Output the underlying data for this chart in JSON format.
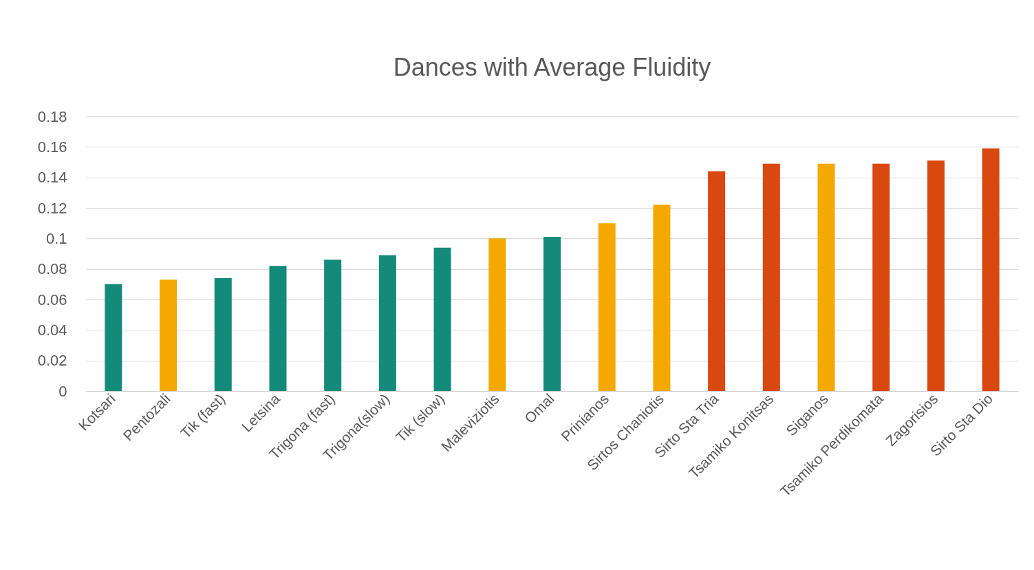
{
  "chart_data": {
    "type": "bar",
    "title": "Dances with Average Fluidity",
    "categories": [
      "Kotsari",
      "Pentozali",
      "Tik (fast)",
      "Letsina",
      "Trigona (fast)",
      "Trigona(slow)",
      "Tik (slow)",
      "Maleviziotis",
      "Omal",
      "Prinianos",
      "Sirtos Chaniotis",
      "Sirto Sta Tria",
      "Tsamiko Konitsas",
      "Siganos",
      "Tsamiko Perdikomata",
      "Zagorisios",
      "Sirto Sta Dio"
    ],
    "values": [
      0.07,
      0.073,
      0.074,
      0.082,
      0.086,
      0.089,
      0.094,
      0.1,
      0.101,
      0.11,
      0.122,
      0.144,
      0.149,
      0.149,
      0.149,
      0.151,
      0.159
    ],
    "colors": [
      "#138a7a",
      "#f5a800",
      "#138a7a",
      "#138a7a",
      "#138a7a",
      "#138a7a",
      "#138a7a",
      "#f5a800",
      "#138a7a",
      "#f5a800",
      "#f5a800",
      "#d9480f",
      "#d9480f",
      "#f5a800",
      "#d9480f",
      "#d9480f",
      "#d9480f"
    ],
    "ylim": [
      0,
      0.18
    ],
    "yticks": [
      0,
      {
        "value": 0.02,
        "label": "0.02"
      },
      {
        "value": 0.04,
        "label": "0.04"
      },
      {
        "value": 0.06,
        "label": "0.06"
      },
      {
        "value": 0.08,
        "label": "0.08"
      },
      0.1,
      {
        "value": 0.12,
        "label": "0.12"
      },
      {
        "value": 0.14,
        "label": "0.14"
      },
      {
        "value": 0.16,
        "label": "0.16"
      },
      {
        "value": 0.18,
        "label": "0.18"
      }
    ],
    "grid": "y"
  }
}
